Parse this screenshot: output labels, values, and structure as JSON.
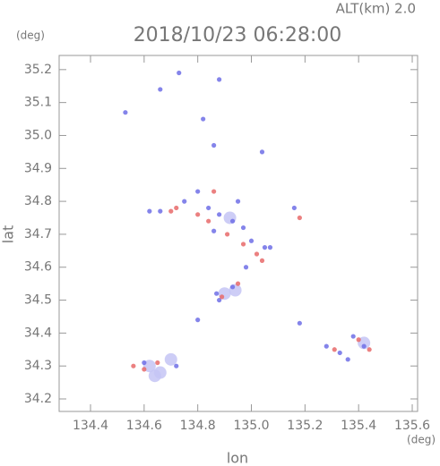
{
  "chart_data": {
    "type": "scatter",
    "title": "2018/10/23 06:28:00",
    "annotation": "ALT(km) 2.0",
    "x_label": "lon",
    "x_unit": "(deg)",
    "y_label": "lat",
    "y_unit": "(deg)",
    "xlim": [
      134.283,
      135.62
    ],
    "ylim": [
      34.162,
      35.243
    ],
    "xticks": [
      134.4,
      134.6,
      134.8,
      {
        "value": 135.0,
        "label": "135.0"
      },
      135.2,
      135.4,
      135.6
    ],
    "yticks": [
      34.2,
      34.3,
      34.4,
      34.5,
      34.6,
      34.7,
      34.8,
      34.9,
      {
        "value": 35.0,
        "label": "35.0"
      },
      35.1,
      35.2
    ],
    "series": [
      {
        "color": "#c4c4f4",
        "x": [
          134.62,
          134.66,
          134.7,
          134.64,
          134.9,
          134.94,
          135.42,
          134.92
        ],
        "y": [
          34.3,
          34.28,
          34.32,
          34.27,
          34.52,
          34.53,
          34.37,
          34.75
        ]
      },
      {
        "color": "#6e6ee6",
        "x": [
          134.66,
          134.73,
          134.88,
          134.82,
          134.86,
          135.04,
          134.53,
          134.62,
          134.66,
          134.75,
          134.8,
          134.84,
          134.88,
          134.93,
          134.97,
          135.0,
          135.05,
          134.98,
          134.87,
          134.93,
          134.88,
          134.8,
          135.28,
          135.33,
          135.38,
          135.42,
          135.36,
          134.6,
          134.72,
          135.16,
          134.86,
          135.07,
          135.18,
          134.95
        ],
        "y": [
          35.14,
          35.19,
          35.17,
          35.05,
          34.97,
          34.95,
          35.07,
          34.77,
          34.77,
          34.8,
          34.83,
          34.78,
          34.76,
          34.74,
          34.72,
          34.68,
          34.66,
          34.6,
          34.52,
          34.54,
          34.5,
          34.44,
          34.36,
          34.34,
          34.39,
          34.36,
          34.32,
          34.31,
          34.3,
          34.78,
          34.71,
          34.66,
          34.43,
          34.8
        ]
      },
      {
        "color": "#e86a6a",
        "x": [
          134.56,
          134.6,
          134.65,
          134.8,
          134.84,
          134.91,
          134.97,
          135.02,
          135.04,
          134.89,
          134.95,
          135.31,
          135.4,
          135.44,
          134.72,
          134.86,
          135.18,
          134.7
        ],
        "y": [
          34.3,
          34.29,
          34.31,
          34.76,
          34.74,
          34.7,
          34.67,
          34.64,
          34.62,
          34.51,
          34.55,
          34.35,
          34.38,
          34.35,
          34.78,
          34.83,
          34.75,
          34.77
        ]
      }
    ]
  }
}
